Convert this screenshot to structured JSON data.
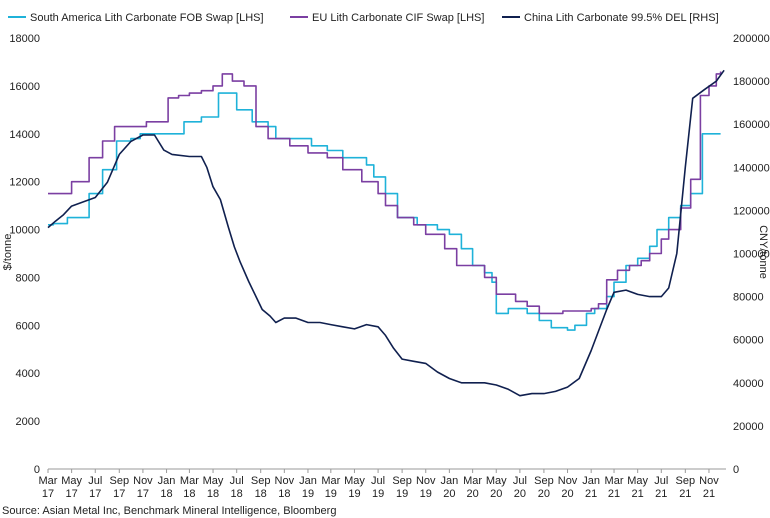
{
  "chart_data": {
    "type": "line",
    "source": "Source: Asian Metal Inc, Benchmark Mineral Intelligence, Bloomberg",
    "ylabel_left": "$/tonne",
    "ylabel_right": "CNY/tonne",
    "ylim_left": [
      0,
      18000
    ],
    "ylim_right": [
      0,
      200000
    ],
    "yticks_left": [
      "0",
      "2000",
      "4000",
      "6000",
      "8000",
      "10000",
      "12000",
      "14000",
      "16000",
      "18000"
    ],
    "yticks_right": [
      "0",
      "20000",
      "40000",
      "60000",
      "80000",
      "100000",
      "120000",
      "140000",
      "160000",
      "180000",
      "200000"
    ],
    "x_ticks": [
      [
        "Mar",
        "17"
      ],
      [
        "May",
        "17"
      ],
      [
        "Jul",
        "17"
      ],
      [
        "Sep",
        "17"
      ],
      [
        "Nov",
        "17"
      ],
      [
        "Jan",
        "18"
      ],
      [
        "Mar",
        "18"
      ],
      [
        "May",
        "18"
      ],
      [
        "Jul",
        "18"
      ],
      [
        "Sep",
        "18"
      ],
      [
        "Nov",
        "18"
      ],
      [
        "Jan",
        "19"
      ],
      [
        "Mar",
        "19"
      ],
      [
        "May",
        "19"
      ],
      [
        "Jul",
        "19"
      ],
      [
        "Sep",
        "19"
      ],
      [
        "Nov",
        "19"
      ],
      [
        "Jan",
        "20"
      ],
      [
        "Mar",
        "20"
      ],
      [
        "May",
        "20"
      ],
      [
        "Jul",
        "20"
      ],
      [
        "Sep",
        "20"
      ],
      [
        "Nov",
        "20"
      ],
      [
        "Jan",
        "21"
      ],
      [
        "Mar",
        "21"
      ],
      [
        "May",
        "21"
      ],
      [
        "Jul",
        "21"
      ],
      [
        "Sep",
        "21"
      ],
      [
        "Nov",
        "21"
      ]
    ],
    "legend_position": "top",
    "series": [
      {
        "name": "South America Lith Carbonate FOB Swap [LHS]",
        "axis": "left",
        "color": "#1fb2d9",
        "step": true,
        "points": [
          [
            "2017-03-01",
            10200
          ],
          [
            "2017-03-15",
            10250
          ],
          [
            "2017-04-20",
            10500
          ],
          [
            "2017-06-15",
            11500
          ],
          [
            "2017-07-20",
            12500
          ],
          [
            "2017-08-25",
            13700
          ],
          [
            "2017-10-01",
            13800
          ],
          [
            "2017-10-25",
            14000
          ],
          [
            "2018-02-15",
            14500
          ],
          [
            "2018-04-01",
            14700
          ],
          [
            "2018-05-15",
            15700
          ],
          [
            "2018-07-01",
            15000
          ],
          [
            "2018-08-10",
            14500
          ],
          [
            "2018-09-20",
            14300
          ],
          [
            "2018-10-10",
            13800
          ],
          [
            "2019-01-10",
            13500
          ],
          [
            "2019-02-20",
            13300
          ],
          [
            "2019-04-01",
            13000
          ],
          [
            "2019-06-01",
            12700
          ],
          [
            "2019-06-20",
            12200
          ],
          [
            "2019-07-20",
            11500
          ],
          [
            "2019-08-20",
            10500
          ],
          [
            "2019-10-10",
            10200
          ],
          [
            "2019-12-01",
            10000
          ],
          [
            "2020-01-01",
            9800
          ],
          [
            "2020-02-01",
            9200
          ],
          [
            "2020-03-01",
            8500
          ],
          [
            "2020-04-01",
            8200
          ],
          [
            "2020-04-20",
            7800
          ],
          [
            "2020-05-01",
            6500
          ],
          [
            "2020-06-01",
            6700
          ],
          [
            "2020-07-01",
            6700
          ],
          [
            "2020-07-20",
            6500
          ],
          [
            "2020-08-20",
            6200
          ],
          [
            "2020-09-20",
            5900
          ],
          [
            "2020-11-01",
            5800
          ],
          [
            "2020-11-20",
            6000
          ],
          [
            "2020-12-20",
            6500
          ],
          [
            "2021-01-10",
            6700
          ],
          [
            "2021-02-10",
            7200
          ],
          [
            "2021-03-01",
            7800
          ],
          [
            "2021-04-01",
            8500
          ],
          [
            "2021-05-01",
            8800
          ],
          [
            "2021-06-01",
            9300
          ],
          [
            "2021-06-20",
            10000
          ],
          [
            "2021-07-20",
            10500
          ],
          [
            "2021-08-20",
            11000
          ],
          [
            "2021-09-15",
            11500
          ],
          [
            "2021-10-15",
            14000
          ],
          [
            "2021-12-01",
            14000
          ]
        ]
      },
      {
        "name": "EU Lith Carbonate CIF Swap [LHS]",
        "axis": "left",
        "color": "#7b3fa2",
        "step": true,
        "points": [
          [
            "2017-03-01",
            11500
          ],
          [
            "2017-05-01",
            12000
          ],
          [
            "2017-06-15",
            13000
          ],
          [
            "2017-07-20",
            13700
          ],
          [
            "2017-08-20",
            14300
          ],
          [
            "2017-11-10",
            14500
          ],
          [
            "2018-01-05",
            15500
          ],
          [
            "2018-02-01",
            15600
          ],
          [
            "2018-03-01",
            15700
          ],
          [
            "2018-04-01",
            15800
          ],
          [
            "2018-05-01",
            16000
          ],
          [
            "2018-05-25",
            16500
          ],
          [
            "2018-06-20",
            16200
          ],
          [
            "2018-07-20",
            16000
          ],
          [
            "2018-08-20",
            14300
          ],
          [
            "2018-09-20",
            13800
          ],
          [
            "2018-11-15",
            13500
          ],
          [
            "2019-01-01",
            13200
          ],
          [
            "2019-02-20",
            13000
          ],
          [
            "2019-04-01",
            12500
          ],
          [
            "2019-05-20",
            12000
          ],
          [
            "2019-07-01",
            11500
          ],
          [
            "2019-07-20",
            11000
          ],
          [
            "2019-08-20",
            10500
          ],
          [
            "2019-10-01",
            10200
          ],
          [
            "2019-11-01",
            9800
          ],
          [
            "2019-12-20",
            9200
          ],
          [
            "2020-01-20",
            8500
          ],
          [
            "2020-04-01",
            8000
          ],
          [
            "2020-05-01",
            7300
          ],
          [
            "2020-06-20",
            7000
          ],
          [
            "2020-07-20",
            6800
          ],
          [
            "2020-08-20",
            6500
          ],
          [
            "2020-10-20",
            6600
          ],
          [
            "2021-01-01",
            6700
          ],
          [
            "2021-01-20",
            6900
          ],
          [
            "2021-02-10",
            7900
          ],
          [
            "2021-03-10",
            8300
          ],
          [
            "2021-04-10",
            8500
          ],
          [
            "2021-05-10",
            8700
          ],
          [
            "2021-06-01",
            9000
          ],
          [
            "2021-07-01",
            9600
          ],
          [
            "2021-07-20",
            10000
          ],
          [
            "2021-08-20",
            10900
          ],
          [
            "2021-09-15",
            12100
          ],
          [
            "2021-10-10",
            15600
          ],
          [
            "2021-11-01",
            16000
          ],
          [
            "2021-11-20",
            16500
          ],
          [
            "2021-12-01",
            16600
          ]
        ]
      },
      {
        "name": "China Lith Carbonate 99.5% DEL [RHS]",
        "axis": "right",
        "color": "#10204f",
        "step": false,
        "points": [
          [
            "2017-03-01",
            112000
          ],
          [
            "2017-03-20",
            115000
          ],
          [
            "2017-04-10",
            118000
          ],
          [
            "2017-05-01",
            122000
          ],
          [
            "2017-06-01",
            124000
          ],
          [
            "2017-07-01",
            126000
          ],
          [
            "2017-08-01",
            133000
          ],
          [
            "2017-09-01",
            146000
          ],
          [
            "2017-10-01",
            152000
          ],
          [
            "2017-11-01",
            155000
          ],
          [
            "2017-12-01",
            155000
          ],
          [
            "2017-12-25",
            148000
          ],
          [
            "2018-01-15",
            146000
          ],
          [
            "2018-03-01",
            145000
          ],
          [
            "2018-04-01",
            145000
          ],
          [
            "2018-04-15",
            140000
          ],
          [
            "2018-05-01",
            131000
          ],
          [
            "2018-05-20",
            125000
          ],
          [
            "2018-06-10",
            112000
          ],
          [
            "2018-06-25",
            103000
          ],
          [
            "2018-07-10",
            96000
          ],
          [
            "2018-08-01",
            87000
          ],
          [
            "2018-08-20",
            80000
          ],
          [
            "2018-09-05",
            74000
          ],
          [
            "2018-09-25",
            71000
          ],
          [
            "2018-10-10",
            68000
          ],
          [
            "2018-11-01",
            70000
          ],
          [
            "2018-12-01",
            70000
          ],
          [
            "2019-01-01",
            68000
          ],
          [
            "2019-02-01",
            68000
          ],
          [
            "2019-03-01",
            67000
          ],
          [
            "2019-04-01",
            66000
          ],
          [
            "2019-05-01",
            65000
          ],
          [
            "2019-06-01",
            67000
          ],
          [
            "2019-07-01",
            66000
          ],
          [
            "2019-07-20",
            62000
          ],
          [
            "2019-08-10",
            56000
          ],
          [
            "2019-09-01",
            51000
          ],
          [
            "2019-10-01",
            50000
          ],
          [
            "2019-11-01",
            49000
          ],
          [
            "2019-12-01",
            45000
          ],
          [
            "2020-01-01",
            42000
          ],
          [
            "2020-02-01",
            40000
          ],
          [
            "2020-03-01",
            40000
          ],
          [
            "2020-04-01",
            40000
          ],
          [
            "2020-05-01",
            39000
          ],
          [
            "2020-06-01",
            37000
          ],
          [
            "2020-07-01",
            34000
          ],
          [
            "2020-08-01",
            35000
          ],
          [
            "2020-09-01",
            35000
          ],
          [
            "2020-10-01",
            36000
          ],
          [
            "2020-11-01",
            38000
          ],
          [
            "2020-12-01",
            42000
          ],
          [
            "2021-01-01",
            55000
          ],
          [
            "2021-01-20",
            64000
          ],
          [
            "2021-02-10",
            74000
          ],
          [
            "2021-03-01",
            82000
          ],
          [
            "2021-04-01",
            83000
          ],
          [
            "2021-05-01",
            81000
          ],
          [
            "2021-06-01",
            80000
          ],
          [
            "2021-07-01",
            80000
          ],
          [
            "2021-07-20",
            84000
          ],
          [
            "2021-08-10",
            100000
          ],
          [
            "2021-09-01",
            140000
          ],
          [
            "2021-09-20",
            172000
          ],
          [
            "2021-10-20",
            176000
          ],
          [
            "2021-11-20",
            180000
          ],
          [
            "2021-12-10",
            185000
          ]
        ]
      }
    ]
  }
}
